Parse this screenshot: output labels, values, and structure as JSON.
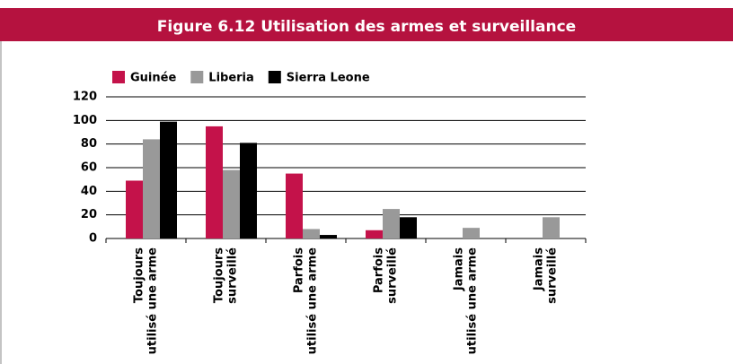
{
  "chart_data": {
    "type": "bar",
    "title": "Figure 6.12  Utilisation des armes et surveillance",
    "categories": [
      [
        "Toujours",
        "utilisé une arme"
      ],
      [
        "Toujours",
        "surveillé"
      ],
      [
        "Parfois",
        "utilisé une arme"
      ],
      [
        "Parfois",
        "surveillé"
      ],
      [
        "Jamais",
        "utilisé une arme"
      ],
      [
        "Jamais",
        "surveillé"
      ]
    ],
    "series": [
      {
        "name": "Guinée",
        "color": "#c4124a",
        "values": [
          49,
          95,
          55,
          7,
          0,
          0
        ]
      },
      {
        "name": "Liberia",
        "color": "#999999",
        "values": [
          84,
          58,
          8,
          25,
          9,
          18
        ]
      },
      {
        "name": "Sierra Leone",
        "color": "#000000",
        "values": [
          99,
          81,
          3,
          18,
          0,
          0
        ]
      }
    ],
    "ylim": [
      0,
      120
    ],
    "yticks": [
      0,
      20,
      40,
      60,
      80,
      100,
      120
    ],
    "grid": true
  }
}
